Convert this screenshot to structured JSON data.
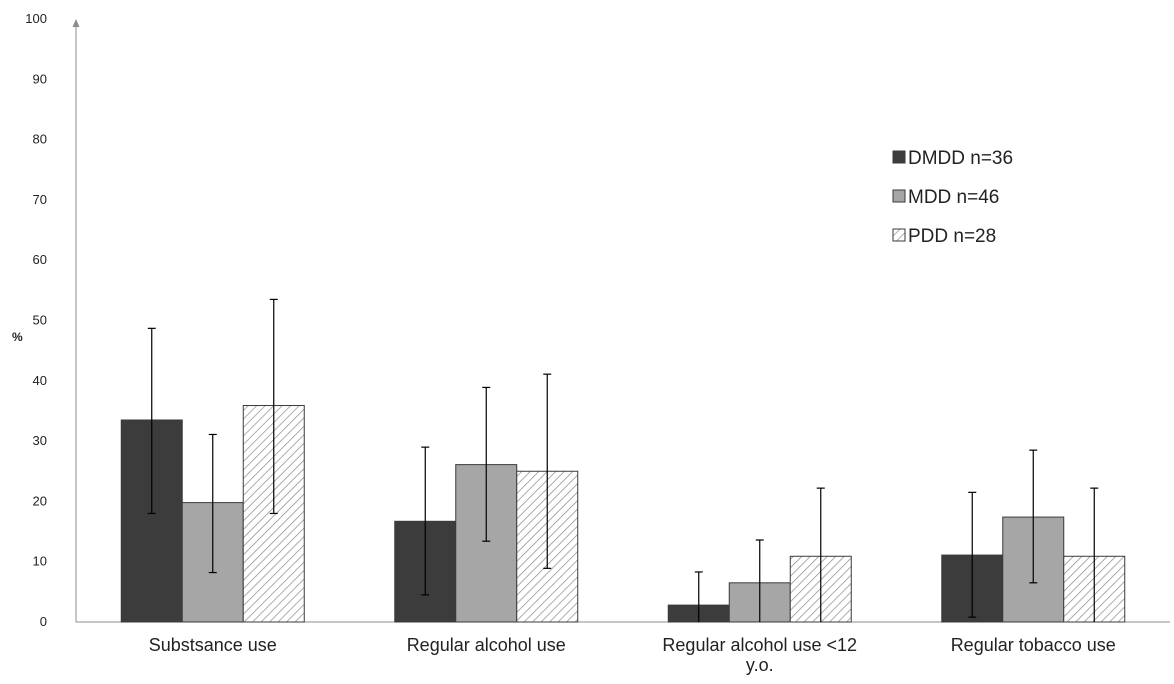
{
  "chart_data": {
    "type": "bar",
    "ylabel": "%",
    "xlabel": "",
    "ylim": [
      0,
      100
    ],
    "yticks": [
      0,
      10,
      20,
      30,
      40,
      50,
      60,
      70,
      80,
      90,
      100
    ],
    "categories": [
      [
        "Substsance use"
      ],
      [
        "Regular alcohol use"
      ],
      [
        "Regular alcohol use <12",
        "y.o."
      ],
      [
        "Regular tobacco use"
      ]
    ],
    "series": [
      {
        "name": "DMDD n=36",
        "values": [
          33.5,
          16.7,
          2.8,
          11.1
        ],
        "error_low": [
          18,
          4.5,
          0,
          0.8
        ],
        "error_high": [
          48.7,
          29,
          8.3,
          21.5
        ],
        "color": "#3c3c3c",
        "pattern": "solid"
      },
      {
        "name": "MDD n=46",
        "values": [
          19.8,
          26.1,
          6.5,
          17.4
        ],
        "error_low": [
          8.2,
          13.4,
          0,
          6.5
        ],
        "error_high": [
          31.1,
          38.9,
          13.6,
          28.5
        ],
        "color": "#a6a6a6",
        "pattern": "solid"
      },
      {
        "name": "PDD n=28",
        "values": [
          35.9,
          25,
          10.9,
          10.9
        ],
        "error_low": [
          18,
          8.9,
          0,
          0
        ],
        "error_high": [
          53.5,
          41.1,
          22.2,
          22.2
        ],
        "color": "#ffffff",
        "pattern": "hatch"
      }
    ],
    "legend_position": "right",
    "grid": false
  }
}
